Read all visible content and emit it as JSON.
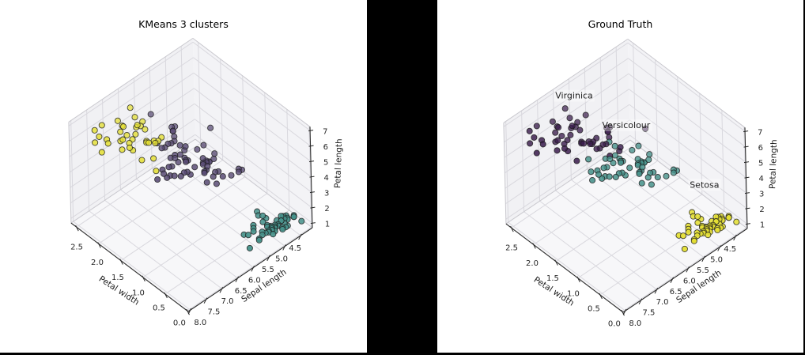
{
  "window": {
    "background_color": "#000000",
    "figure_background_color": "#ffffff"
  },
  "chart_data": [
    {
      "type": "scatter",
      "subtype": "3d-scatter",
      "title": "KMeans 3 clusters",
      "xlabel": "Petal width",
      "ylabel": "Sepal length",
      "zlabel": "Petal length",
      "xticks": [
        0.0,
        0.5,
        1.0,
        1.5,
        2.0,
        2.5
      ],
      "yticks": [
        4.5,
        5.0,
        5.5,
        6.0,
        6.5,
        7.0,
        7.5,
        8.0
      ],
      "zticks": [
        1,
        2,
        3,
        4,
        5,
        6,
        7
      ],
      "xlim": [
        -0.02,
        2.62
      ],
      "ylim": [
        4.13,
        8.07
      ],
      "zlim": [
        0.7,
        7.25
      ],
      "grid": true,
      "legend": "none",
      "color_by": "kmeans_cluster",
      "cluster_colors": [
        "#e4df33",
        "#584a73",
        "#46918a"
      ],
      "annotations": []
    },
    {
      "type": "scatter",
      "subtype": "3d-scatter",
      "title": "Ground Truth",
      "xlabel": "Petal width",
      "ylabel": "Sepal length",
      "zlabel": "Petal length",
      "xticks": [
        0.0,
        0.5,
        1.0,
        1.5,
        2.0,
        2.5
      ],
      "yticks": [
        4.5,
        5.0,
        5.5,
        6.0,
        6.5,
        7.0,
        7.5,
        8.0
      ],
      "zticks": [
        1,
        2,
        3,
        4,
        5,
        6,
        7
      ],
      "xlim": [
        -0.02,
        2.62
      ],
      "ylim": [
        4.13,
        8.07
      ],
      "zlim": [
        0.7,
        7.25
      ],
      "grid": true,
      "legend": "none",
      "color_by": "species",
      "species_colors": [
        "#e4df33",
        "#46918a",
        "#3a1c4c"
      ],
      "annotations": [
        {
          "label": "Virginica",
          "species": 2
        },
        {
          "label": "Versicolour",
          "species": 1
        },
        {
          "label": "Setosa",
          "species": 0
        }
      ]
    }
  ],
  "style": {
    "pane_wall_color": "#f1f1f4",
    "pane_wall2_color": "#f3f3f6",
    "pane_floor_color": "#f7f7f9",
    "grid_color": "#d9d8de",
    "light_edge_color": "#c9c8ce",
    "axis_line_color": "#2a2a2a",
    "tick_label_color": "#262626",
    "point_edge_color": "#1c1c1c"
  },
  "iris_points": {
    "columns": [
      "petal_width",
      "sepal_length",
      "petal_length",
      "species",
      "kmeans_cluster"
    ],
    "species_names": [
      "Setosa",
      "Versicolour",
      "Virginica"
    ],
    "rows": [
      [
        0.2,
        5.1,
        1.4,
        0,
        2
      ],
      [
        0.2,
        4.9,
        1.4,
        0,
        2
      ],
      [
        0.2,
        4.7,
        1.3,
        0,
        2
      ],
      [
        0.2,
        4.6,
        1.5,
        0,
        2
      ],
      [
        0.2,
        5.0,
        1.4,
        0,
        2
      ],
      [
        0.4,
        5.4,
        1.7,
        0,
        2
      ],
      [
        0.3,
        4.6,
        1.4,
        0,
        2
      ],
      [
        0.2,
        5.0,
        1.5,
        0,
        2
      ],
      [
        0.2,
        4.4,
        1.4,
        0,
        2
      ],
      [
        0.1,
        4.9,
        1.5,
        0,
        2
      ],
      [
        0.2,
        5.4,
        1.5,
        0,
        2
      ],
      [
        0.2,
        4.8,
        1.6,
        0,
        2
      ],
      [
        0.1,
        4.8,
        1.4,
        0,
        2
      ],
      [
        0.1,
        4.3,
        1.1,
        0,
        2
      ],
      [
        0.2,
        5.8,
        1.2,
        0,
        2
      ],
      [
        0.4,
        5.7,
        1.5,
        0,
        2
      ],
      [
        0.4,
        5.4,
        1.3,
        0,
        2
      ],
      [
        0.3,
        5.1,
        1.4,
        0,
        2
      ],
      [
        0.3,
        5.7,
        1.7,
        0,
        2
      ],
      [
        0.3,
        5.1,
        1.5,
        0,
        2
      ],
      [
        0.2,
        5.4,
        1.7,
        0,
        2
      ],
      [
        0.4,
        5.1,
        1.5,
        0,
        2
      ],
      [
        0.2,
        4.6,
        1.0,
        0,
        2
      ],
      [
        0.5,
        5.1,
        1.7,
        0,
        2
      ],
      [
        0.2,
        4.8,
        1.9,
        0,
        2
      ],
      [
        0.2,
        5.0,
        1.6,
        0,
        2
      ],
      [
        0.4,
        5.0,
        1.6,
        0,
        2
      ],
      [
        0.2,
        5.2,
        1.5,
        0,
        2
      ],
      [
        0.2,
        5.2,
        1.4,
        0,
        2
      ],
      [
        0.2,
        4.7,
        1.6,
        0,
        2
      ],
      [
        0.2,
        4.8,
        1.6,
        0,
        2
      ],
      [
        0.4,
        5.4,
        1.5,
        0,
        2
      ],
      [
        0.1,
        5.2,
        1.5,
        0,
        2
      ],
      [
        0.2,
        5.5,
        1.4,
        0,
        2
      ],
      [
        0.2,
        4.9,
        1.5,
        0,
        2
      ],
      [
        0.2,
        5.0,
        1.2,
        0,
        2
      ],
      [
        0.2,
        5.5,
        1.3,
        0,
        2
      ],
      [
        0.1,
        4.9,
        1.4,
        0,
        2
      ],
      [
        0.2,
        4.4,
        1.3,
        0,
        2
      ],
      [
        0.2,
        5.1,
        1.5,
        0,
        2
      ],
      [
        0.3,
        5.0,
        1.3,
        0,
        2
      ],
      [
        0.3,
        4.5,
        1.3,
        0,
        2
      ],
      [
        0.2,
        4.4,
        1.3,
        0,
        2
      ],
      [
        0.6,
        5.0,
        1.6,
        0,
        2
      ],
      [
        0.4,
        5.1,
        1.9,
        0,
        2
      ],
      [
        0.3,
        4.8,
        1.4,
        0,
        2
      ],
      [
        0.2,
        5.1,
        1.6,
        0,
        2
      ],
      [
        0.2,
        4.6,
        1.4,
        0,
        2
      ],
      [
        0.2,
        5.3,
        1.5,
        0,
        2
      ],
      [
        0.2,
        5.0,
        1.4,
        0,
        2
      ],
      [
        1.4,
        7.0,
        4.7,
        1,
        1
      ],
      [
        1.5,
        6.4,
        4.5,
        1,
        1
      ],
      [
        1.5,
        6.9,
        4.9,
        1,
        0
      ],
      [
        1.3,
        5.5,
        4.0,
        1,
        1
      ],
      [
        1.5,
        6.5,
        4.6,
        1,
        1
      ],
      [
        1.3,
        5.7,
        4.5,
        1,
        1
      ],
      [
        1.6,
        6.3,
        4.7,
        1,
        1
      ],
      [
        1.0,
        4.9,
        3.3,
        1,
        1
      ],
      [
        1.3,
        6.6,
        4.6,
        1,
        1
      ],
      [
        1.4,
        5.2,
        3.9,
        1,
        1
      ],
      [
        1.0,
        5.0,
        3.5,
        1,
        1
      ],
      [
        1.5,
        5.9,
        4.2,
        1,
        1
      ],
      [
        1.0,
        6.0,
        4.0,
        1,
        1
      ],
      [
        1.4,
        6.1,
        4.7,
        1,
        1
      ],
      [
        1.3,
        5.6,
        3.6,
        1,
        1
      ],
      [
        1.4,
        6.7,
        4.4,
        1,
        1
      ],
      [
        1.5,
        5.6,
        4.5,
        1,
        1
      ],
      [
        1.0,
        5.8,
        4.1,
        1,
        1
      ],
      [
        1.5,
        6.2,
        4.5,
        1,
        1
      ],
      [
        1.1,
        5.6,
        3.9,
        1,
        1
      ],
      [
        1.8,
        5.9,
        4.8,
        1,
        1
      ],
      [
        1.3,
        6.1,
        4.0,
        1,
        1
      ],
      [
        1.5,
        6.3,
        4.9,
        1,
        1
      ],
      [
        1.2,
        6.1,
        4.7,
        1,
        1
      ],
      [
        1.3,
        6.4,
        4.3,
        1,
        1
      ],
      [
        1.4,
        6.6,
        4.4,
        1,
        1
      ],
      [
        1.4,
        6.8,
        4.8,
        1,
        1
      ],
      [
        1.7,
        6.7,
        5.0,
        1,
        0
      ],
      [
        1.5,
        6.0,
        4.5,
        1,
        1
      ],
      [
        1.0,
        5.7,
        3.5,
        1,
        1
      ],
      [
        1.1,
        5.5,
        3.8,
        1,
        1
      ],
      [
        1.0,
        5.5,
        3.7,
        1,
        1
      ],
      [
        1.2,
        5.8,
        3.9,
        1,
        1
      ],
      [
        1.6,
        6.0,
        5.1,
        1,
        1
      ],
      [
        1.5,
        5.4,
        4.5,
        1,
        1
      ],
      [
        1.6,
        6.0,
        4.5,
        1,
        1
      ],
      [
        1.5,
        6.7,
        4.7,
        1,
        1
      ],
      [
        1.3,
        6.3,
        4.4,
        1,
        1
      ],
      [
        1.3,
        5.6,
        4.1,
        1,
        1
      ],
      [
        1.3,
        5.5,
        4.0,
        1,
        1
      ],
      [
        1.2,
        5.5,
        4.4,
        1,
        1
      ],
      [
        1.4,
        6.1,
        4.6,
        1,
        1
      ],
      [
        1.2,
        5.8,
        4.0,
        1,
        1
      ],
      [
        1.0,
        5.0,
        3.3,
        1,
        1
      ],
      [
        1.3,
        5.6,
        4.2,
        1,
        1
      ],
      [
        1.2,
        5.7,
        4.2,
        1,
        1
      ],
      [
        1.3,
        5.7,
        4.2,
        1,
        1
      ],
      [
        1.3,
        6.2,
        4.3,
        1,
        1
      ],
      [
        1.1,
        5.1,
        3.0,
        1,
        1
      ],
      [
        1.3,
        5.7,
        4.1,
        1,
        1
      ],
      [
        2.5,
        6.3,
        6.0,
        2,
        0
      ],
      [
        1.9,
        5.8,
        5.1,
        2,
        1
      ],
      [
        2.1,
        7.1,
        5.9,
        2,
        0
      ],
      [
        1.8,
        6.3,
        5.6,
        2,
        0
      ],
      [
        2.2,
        6.5,
        5.8,
        2,
        0
      ],
      [
        2.1,
        7.6,
        6.6,
        2,
        0
      ],
      [
        1.7,
        4.9,
        4.5,
        2,
        1
      ],
      [
        1.8,
        7.3,
        6.3,
        2,
        0
      ],
      [
        1.8,
        6.7,
        5.8,
        2,
        0
      ],
      [
        2.5,
        7.2,
        6.1,
        2,
        0
      ],
      [
        2.0,
        6.5,
        5.1,
        2,
        0
      ],
      [
        1.9,
        6.4,
        5.3,
        2,
        0
      ],
      [
        2.1,
        6.8,
        5.5,
        2,
        0
      ],
      [
        2.0,
        5.7,
        5.0,
        2,
        1
      ],
      [
        2.4,
        5.8,
        5.1,
        2,
        1
      ],
      [
        2.3,
        6.4,
        5.3,
        2,
        0
      ],
      [
        1.8,
        6.5,
        5.5,
        2,
        0
      ],
      [
        2.2,
        7.7,
        6.7,
        2,
        0
      ],
      [
        2.3,
        7.7,
        6.9,
        2,
        0
      ],
      [
        1.5,
        6.0,
        5.0,
        2,
        1
      ],
      [
        2.3,
        6.9,
        5.7,
        2,
        0
      ],
      [
        2.0,
        5.6,
        4.9,
        2,
        1
      ],
      [
        2.0,
        7.7,
        6.7,
        2,
        0
      ],
      [
        1.8,
        6.3,
        4.9,
        2,
        1
      ],
      [
        2.1,
        6.7,
        5.7,
        2,
        0
      ],
      [
        1.8,
        7.2,
        6.0,
        2,
        0
      ],
      [
        1.8,
        6.2,
        4.8,
        2,
        1
      ],
      [
        1.8,
        6.1,
        4.9,
        2,
        1
      ],
      [
        2.1,
        6.4,
        5.6,
        2,
        0
      ],
      [
        1.6,
        7.2,
        5.8,
        2,
        0
      ],
      [
        1.9,
        7.4,
        6.1,
        2,
        0
      ],
      [
        2.0,
        7.9,
        6.4,
        2,
        0
      ],
      [
        2.2,
        6.4,
        5.6,
        2,
        0
      ],
      [
        1.5,
        6.3,
        5.1,
        2,
        1
      ],
      [
        1.4,
        6.1,
        5.6,
        2,
        1
      ],
      [
        2.3,
        7.7,
        6.1,
        2,
        0
      ],
      [
        2.4,
        6.3,
        5.6,
        2,
        0
      ],
      [
        1.8,
        6.4,
        5.5,
        2,
        0
      ],
      [
        1.8,
        6.0,
        4.8,
        2,
        1
      ],
      [
        2.1,
        6.9,
        5.4,
        2,
        0
      ],
      [
        2.4,
        6.7,
        5.6,
        2,
        0
      ],
      [
        2.3,
        6.9,
        5.1,
        2,
        0
      ],
      [
        1.9,
        5.8,
        5.1,
        2,
        1
      ],
      [
        2.3,
        6.8,
        5.9,
        2,
        0
      ],
      [
        2.5,
        6.7,
        5.7,
        2,
        0
      ],
      [
        2.3,
        6.7,
        5.2,
        2,
        0
      ],
      [
        1.9,
        6.3,
        5.0,
        2,
        1
      ],
      [
        2.0,
        6.5,
        5.2,
        2,
        0
      ],
      [
        2.3,
        6.2,
        5.4,
        2,
        0
      ],
      [
        1.8,
        5.9,
        5.1,
        2,
        1
      ]
    ]
  }
}
